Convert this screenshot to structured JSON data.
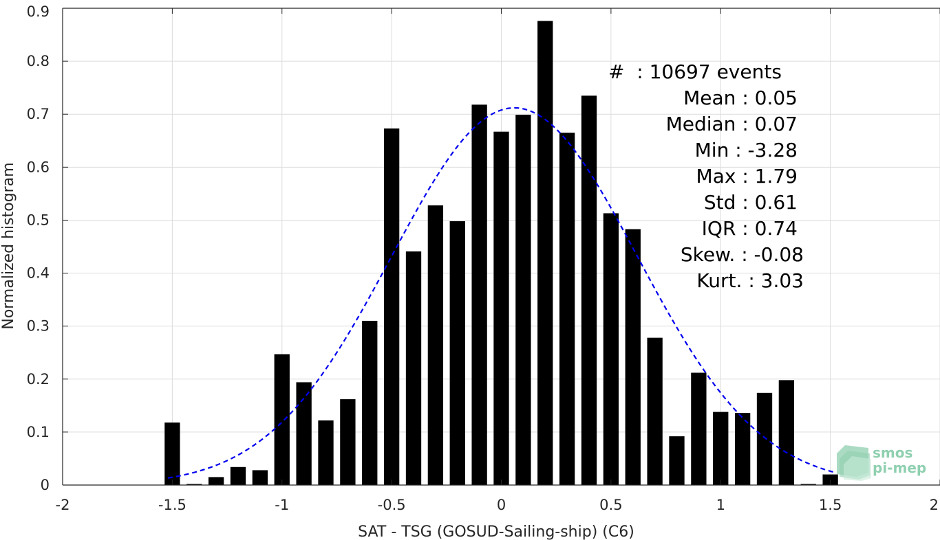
{
  "chart_data": {
    "type": "bar",
    "xlabel": "SAT - TSG (GOSUD-Sailing-ship) (C6)",
    "ylabel": "Normalized histogram",
    "xlim": [
      -2,
      2
    ],
    "ylim": [
      0,
      0.9
    ],
    "grid": true,
    "x_ticks": [
      -2,
      -1.5,
      -1,
      -0.5,
      0,
      0.5,
      1,
      1.5,
      2
    ],
    "x_tick_labels": [
      "-2",
      "-1.5",
      "-1",
      "-0.5",
      "0",
      "0.5",
      "1",
      "1.5",
      "2"
    ],
    "y_ticks": [
      0,
      0.1,
      0.2,
      0.3,
      0.4,
      0.5,
      0.6,
      0.7,
      0.8,
      0.9
    ],
    "y_tick_labels": [
      "0",
      "0.1",
      "0.2",
      "0.3",
      "0.4",
      "0.5",
      "0.6",
      "0.7",
      "0.8",
      "0.9"
    ],
    "bar_width": 0.07,
    "bars": {
      "x": [
        -1.5,
        -1.4,
        -1.3,
        -1.2,
        -1.1,
        -1.0,
        -0.9,
        -0.8,
        -0.7,
        -0.6,
        -0.5,
        -0.4,
        -0.3,
        -0.2,
        -0.1,
        0.0,
        0.1,
        0.2,
        0.3,
        0.4,
        0.5,
        0.6,
        0.7,
        0.8,
        0.9,
        1.0,
        1.1,
        1.2,
        1.3,
        1.4,
        1.5
      ],
      "values": [
        0.118,
        0.002,
        0.015,
        0.034,
        0.028,
        0.247,
        0.194,
        0.122,
        0.162,
        0.31,
        0.673,
        0.441,
        0.528,
        0.498,
        0.718,
        0.667,
        0.699,
        0.876,
        0.665,
        0.735,
        0.513,
        0.483,
        0.278,
        0.092,
        0.212,
        0.138,
        0.136,
        0.174,
        0.198,
        0.002,
        0.02
      ],
      "color": "#000000"
    },
    "fit_curve": {
      "style": "dashed",
      "color": "#0000ee",
      "mean": 0.06,
      "std": 0.56,
      "peak": 0.712,
      "x_range": [
        -1.52,
        1.52
      ]
    },
    "annotations": [
      "#  : 10697 events",
      "Mean : 0.05",
      "Median : 0.07",
      "Min : -3.28",
      "Max : 1.79",
      "Std : 0.61",
      "IQR : 0.74",
      "Skew. : -0.08",
      "Kurt. : 3.03"
    ],
    "logo": [
      "smos",
      "pi-mep"
    ]
  }
}
